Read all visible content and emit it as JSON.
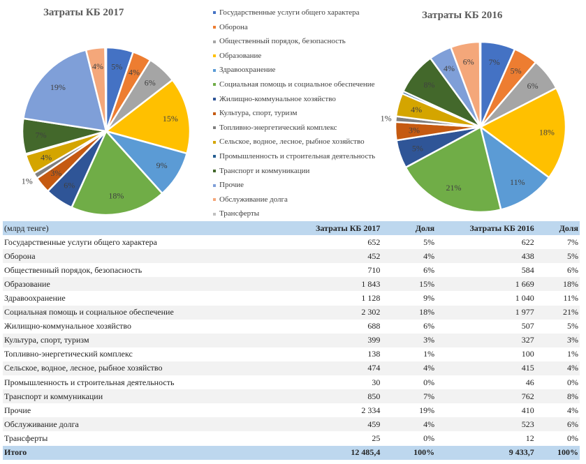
{
  "chart_data": [
    {
      "type": "pie",
      "title": "Затраты КБ 2017",
      "values": [
        652,
        452,
        710,
        1843,
        1128,
        2302,
        688,
        399,
        138,
        474,
        30,
        850,
        2334,
        459,
        25
      ],
      "labels": [
        "5%",
        "4%",
        "6%",
        "15%",
        "9%",
        "18%",
        "6%",
        "3%",
        "1%",
        "4%",
        "",
        "7%",
        "19%",
        "4%",
        ""
      ]
    },
    {
      "type": "pie",
      "title": "Затраты КБ 2016",
      "values": [
        622,
        438,
        584,
        1669,
        1040,
        1977,
        507,
        327,
        100,
        415,
        46,
        762,
        410,
        523,
        12
      ],
      "labels": [
        "7%",
        "5%",
        "6%",
        "18%",
        "11%",
        "21%",
        "5%",
        "3%",
        "1%",
        "4%",
        "",
        "8%",
        "4%",
        "6%",
        ""
      ]
    }
  ],
  "legend": {
    "placement": "center",
    "categories": [
      "Государственные услуги общего характера",
      "Оборона",
      "Общественный порядок, безопасность",
      "Образование",
      "Здравоохранение",
      "Социальная помощь и социальное обеспечение",
      "Жилищно-коммунальное хозяйство",
      "Культура, спорт, туризм",
      "Топливно-энергетический комплекс",
      "Сельское, водное, лесное, рыбное хозяйство",
      "Промышленность и строительная деятельность",
      "Транспорт и коммуникации",
      "Прочие",
      "Обслуживание долга",
      "Трансферты"
    ],
    "colors": [
      "#4472c4",
      "#ed7d31",
      "#a5a5a5",
      "#ffc000",
      "#5b9bd5",
      "#70ad47",
      "#2f5597",
      "#c55a11",
      "#7f7f7f",
      "#d4a500",
      "#255e91",
      "#43682b",
      "#7f9fd8",
      "#f4a77a",
      "#c0c0c0"
    ]
  },
  "table": {
    "header": [
      "(млрд тенге)",
      "Затраты КБ 2017",
      "Доля",
      "Затраты КБ 2016",
      "Доля"
    ],
    "rows": [
      [
        "Государственные услуги общего характера",
        "652",
        "5%",
        "622",
        "7%"
      ],
      [
        "Оборона",
        "452",
        "4%",
        "438",
        "5%"
      ],
      [
        "Общественный порядок, безопасность",
        "710",
        "6%",
        "584",
        "6%"
      ],
      [
        "Образование",
        "1 843",
        "15%",
        "1 669",
        "18%"
      ],
      [
        "Здравоохранение",
        "1 128",
        "9%",
        "1 040",
        "11%"
      ],
      [
        "Социальная помощь и социальное обеспечение",
        "2 302",
        "18%",
        "1 977",
        "21%"
      ],
      [
        "Жилищно-коммунальное хозяйство",
        "688",
        "6%",
        "507",
        "5%"
      ],
      [
        "Культура, спорт, туризм",
        "399",
        "3%",
        "327",
        "3%"
      ],
      [
        "Топливно-энергетический комплекс",
        "138",
        "1%",
        "100",
        "1%"
      ],
      [
        "Сельское, водное, лесное, рыбное хозяйство",
        "474",
        "4%",
        "415",
        "4%"
      ],
      [
        "Промышленность и строительная деятельность",
        "30",
        "0%",
        "46",
        "0%"
      ],
      [
        "Транспорт и коммуникации",
        "850",
        "7%",
        "762",
        "8%"
      ],
      [
        "Прочие",
        "2 334",
        "19%",
        "410",
        "4%"
      ],
      [
        "Обслуживание долга",
        "459",
        "4%",
        "523",
        "6%"
      ],
      [
        "Трансферты",
        "25",
        "0%",
        "12",
        "0%"
      ]
    ],
    "total": [
      "Итого",
      "12 485,4",
      "100%",
      "9 433,7",
      "100%"
    ]
  }
}
